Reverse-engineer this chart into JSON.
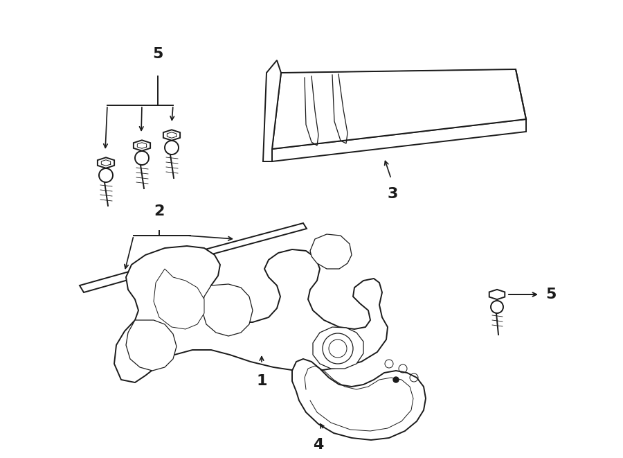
{
  "bg_color": "#ffffff",
  "line_color": "#1a1a1a",
  "fig_width": 9.0,
  "fig_height": 6.61,
  "dpi": 100,
  "label_fontsize": 14,
  "label_bold": true
}
